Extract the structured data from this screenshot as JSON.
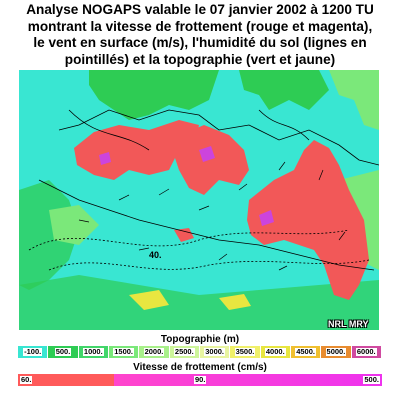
{
  "title_lines": [
    "Analyse NOGAPS valable le 07 janvier 2002 à 1200 TU",
    "montrant la vitesse de frottement (rouge et magenta),",
    "le vent en surface (m/s), l'humidité du sol (lignes en",
    "pointillés) et la topographie (vert et jaune)"
  ],
  "map": {
    "credit": "NRL MRY",
    "contour_label": "40.",
    "colors": {
      "sea": "#39e6d2",
      "friction_red": "#f25858",
      "friction_magenta": "#cc44dd",
      "topo_green": "#2ecc54",
      "topo_light_green": "#7be87a",
      "topo_yellow": "#e8e640"
    }
  },
  "topography_scale": {
    "label": "Topographie (m)",
    "ticks": [
      "-100.",
      "500.",
      "1000.",
      "1500.",
      "2000.",
      "2500.",
      "3000.",
      "3500.",
      "4000.",
      "4500.",
      "5000.",
      "6000."
    ],
    "colors": [
      "#39e6d2",
      "#2ecc54",
      "#42d66a",
      "#7be87a",
      "#a8f08a",
      "#cdf59a",
      "#e8f4a0",
      "#f0f06a",
      "#e8e640",
      "#f0c030",
      "#e88c30",
      "#d04aa0"
    ]
  },
  "wind_scale": {
    "label": "Vitesse de frottement (cm/s)",
    "ticks": [
      "60.",
      "90.",
      "500."
    ]
  }
}
